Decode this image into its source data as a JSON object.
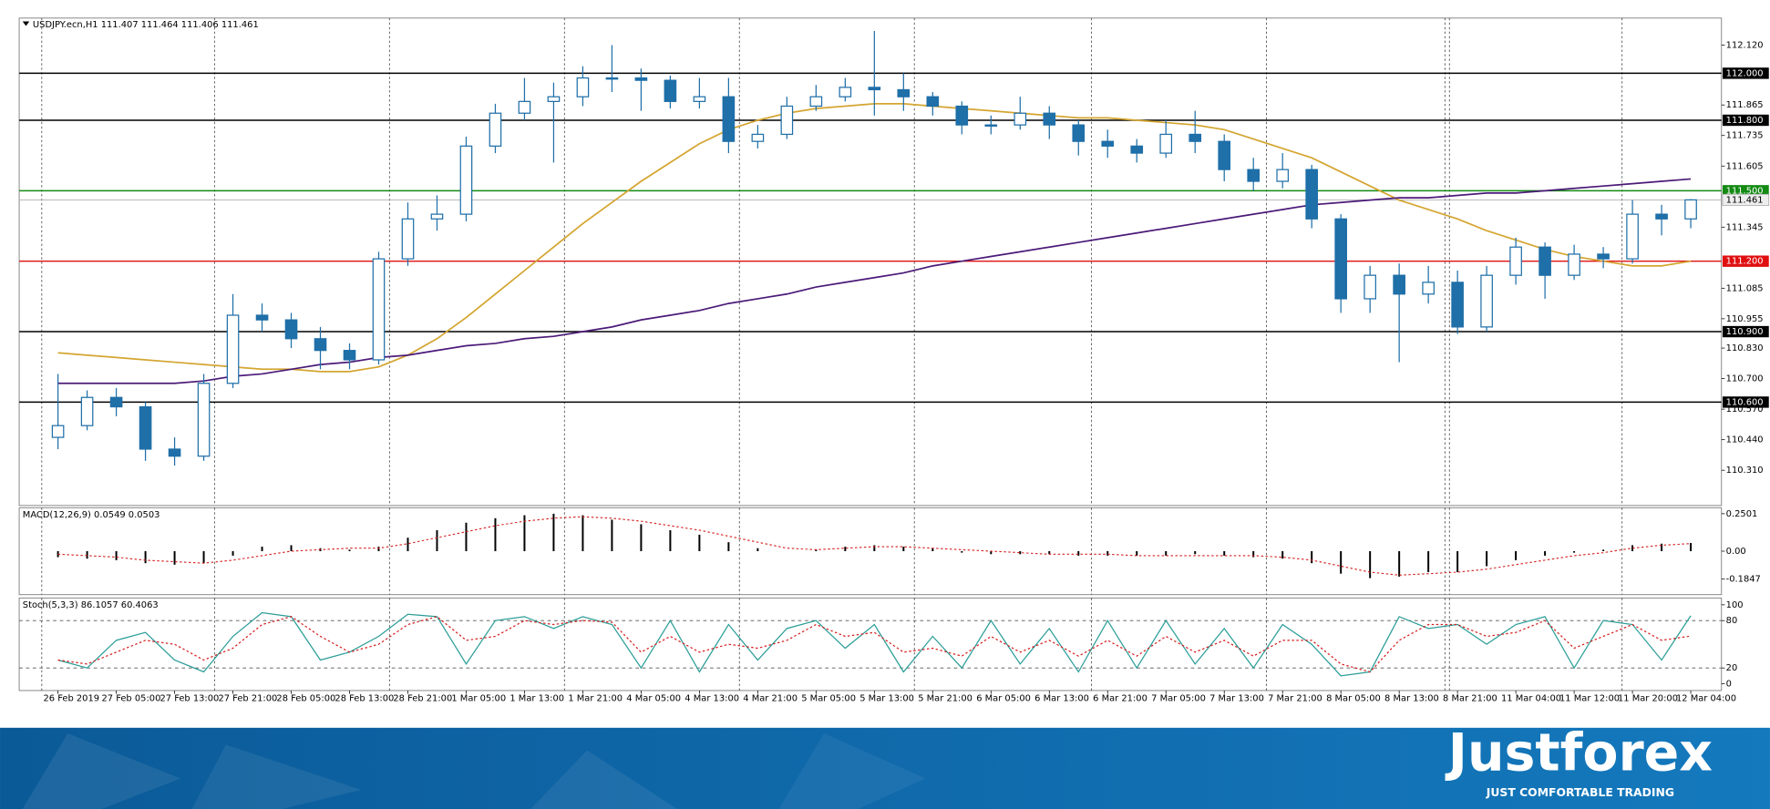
{
  "chart_data": [
    {
      "type": "candlestick",
      "title": "USDJPY.ecn,H1  111.407 111.464 111.406 111.461",
      "categories": [
        "26 Feb 2019",
        null,
        "27 Feb 05:00",
        null,
        "27 Feb 13:00",
        null,
        "27 Feb 21:00",
        null,
        "28 Feb 05:00",
        null,
        "28 Feb 13:00",
        null,
        "28 Feb 21:00",
        null,
        "1 Mar 05:00",
        null,
        "1 Mar 13:00",
        null,
        "1 Mar 21:00",
        null,
        "4 Mar 05:00",
        null,
        "4 Mar 13:00",
        null,
        "4 Mar 21:00",
        null,
        "5 Mar 05:00",
        null,
        "5 Mar 13:00",
        null,
        "5 Mar 21:00",
        null,
        "6 Mar 05:00",
        null,
        "6 Mar 13:00",
        null,
        "6 Mar 21:00",
        null,
        "7 Mar 05:00",
        null,
        "7 Mar 13:00",
        null,
        "7 Mar 21:00",
        null,
        "8 Mar 05:00",
        null,
        "8 Mar 13:00",
        null,
        "8 Mar 21:00",
        null,
        "11 Mar 04:00",
        null,
        "11 Mar 12:00",
        null,
        "11 Mar 20:00",
        null,
        "12 Mar 04:00"
      ],
      "open": [
        110.45,
        110.5,
        110.62,
        110.58,
        110.4,
        110.37,
        110.68,
        110.97,
        110.95,
        110.87,
        110.82,
        110.78,
        111.21,
        111.38,
        111.4,
        111.69,
        111.83,
        111.88,
        111.9,
        111.98,
        111.98,
        111.97,
        111.88,
        111.9,
        111.71,
        111.74,
        111.86,
        111.9,
        111.94,
        111.93,
        111.9,
        111.86,
        111.78,
        111.78,
        111.83,
        111.78,
        111.71,
        111.69,
        111.66,
        111.74,
        111.71,
        111.59,
        111.54,
        111.59,
        111.38,
        111.04,
        111.14,
        111.06,
        111.11,
        110.92,
        111.14,
        111.26,
        111.14,
        111.23,
        111.21,
        111.4,
        111.38
      ],
      "high": [
        110.72,
        110.65,
        110.66,
        110.6,
        110.45,
        110.72,
        111.06,
        111.02,
        110.98,
        110.92,
        110.85,
        111.24,
        111.45,
        111.48,
        111.73,
        111.87,
        111.98,
        111.96,
        112.03,
        112.12,
        112.02,
        111.99,
        111.98,
        111.98,
        111.78,
        111.9,
        111.95,
        111.98,
        112.18,
        112.0,
        111.92,
        111.88,
        111.82,
        111.9,
        111.86,
        111.8,
        111.76,
        111.72,
        111.8,
        111.84,
        111.74,
        111.64,
        111.66,
        111.61,
        111.4,
        111.18,
        111.19,
        111.18,
        111.16,
        111.18,
        111.3,
        111.28,
        111.27,
        111.26,
        111.46,
        111.44,
        111.464
      ],
      "low": [
        110.4,
        110.48,
        110.54,
        110.35,
        110.33,
        110.35,
        110.66,
        110.9,
        110.83,
        110.74,
        110.74,
        110.76,
        111.18,
        111.33,
        111.37,
        111.66,
        111.8,
        111.62,
        111.86,
        111.92,
        111.84,
        111.85,
        111.85,
        111.66,
        111.68,
        111.72,
        111.84,
        111.88,
        111.82,
        111.84,
        111.82,
        111.74,
        111.74,
        111.76,
        111.72,
        111.65,
        111.64,
        111.62,
        111.64,
        111.66,
        111.54,
        111.5,
        111.51,
        111.34,
        110.98,
        110.98,
        110.77,
        111.02,
        110.89,
        110.9,
        111.1,
        111.04,
        111.12,
        111.17,
        111.19,
        111.31,
        111.34
      ],
      "close": [
        110.5,
        110.62,
        110.58,
        110.4,
        110.37,
        110.68,
        110.97,
        110.95,
        110.87,
        110.82,
        110.78,
        111.21,
        111.38,
        111.4,
        111.69,
        111.83,
        111.88,
        111.9,
        111.98,
        111.98,
        111.97,
        111.88,
        111.9,
        111.71,
        111.74,
        111.86,
        111.9,
        111.94,
        111.93,
        111.9,
        111.86,
        111.78,
        111.78,
        111.83,
        111.78,
        111.71,
        111.69,
        111.66,
        111.74,
        111.71,
        111.59,
        111.54,
        111.59,
        111.38,
        111.04,
        111.14,
        111.06,
        111.11,
        110.92,
        111.14,
        111.26,
        111.14,
        111.23,
        111.21,
        111.4,
        111.38,
        111.461
      ],
      "up_color": "#ffffff",
      "down_color": "#1f6fa8",
      "wick_color": "#1f6fa8",
      "lines": [
        {
          "color": "#d4a531",
          "values": [
            110.81,
            110.8,
            110.79,
            110.78,
            110.77,
            110.76,
            110.75,
            110.74,
            110.74,
            110.73,
            110.73,
            110.75,
            110.8,
            110.87,
            110.96,
            111.06,
            111.16,
            111.26,
            111.36,
            111.45,
            111.54,
            111.62,
            111.7,
            111.76,
            111.8,
            111.83,
            111.85,
            111.86,
            111.87,
            111.87,
            111.86,
            111.85,
            111.84,
            111.83,
            111.82,
            111.81,
            111.81,
            111.8,
            111.79,
            111.78,
            111.76,
            111.72,
            111.68,
            111.64,
            111.58,
            111.52,
            111.46,
            111.42,
            111.38,
            111.33,
            111.29,
            111.25,
            111.22,
            111.2,
            111.18,
            111.18,
            111.2
          ]
        },
        {
          "color": "#4b1a78",
          "values": [
            110.68,
            110.68,
            110.68,
            110.68,
            110.68,
            110.69,
            110.71,
            110.72,
            110.74,
            110.76,
            110.77,
            110.79,
            110.8,
            110.82,
            110.84,
            110.85,
            110.87,
            110.88,
            110.9,
            110.92,
            110.95,
            110.97,
            110.99,
            111.02,
            111.04,
            111.06,
            111.09,
            111.11,
            111.13,
            111.15,
            111.18,
            111.2,
            111.22,
            111.24,
            111.26,
            111.28,
            111.3,
            111.32,
            111.34,
            111.36,
            111.38,
            111.4,
            111.42,
            111.44,
            111.45,
            111.46,
            111.47,
            111.47,
            111.48,
            111.49,
            111.49,
            111.5,
            111.51,
            111.52,
            111.53,
            111.54,
            111.55
          ]
        }
      ],
      "levels": [
        {
          "value": 112.0,
          "label": "112.000",
          "color": "#000000"
        },
        {
          "value": 111.8,
          "label": "111.800",
          "color": "#000000"
        },
        {
          "value": 111.5,
          "label": "111.500",
          "color": "#138a13"
        },
        {
          "value": 111.2,
          "label": "111.200",
          "color": "#e01010"
        },
        {
          "value": 110.9,
          "label": "110.900",
          "color": "#000000"
        },
        {
          "value": 110.6,
          "label": "110.600",
          "color": "#000000"
        }
      ],
      "last_price": {
        "value": 111.461,
        "label": "111.461"
      },
      "ylim": [
        110.16,
        112.235
      ],
      "yticks": [
        {
          "value": 112.12,
          "label": "112.120"
        },
        {
          "value": 111.865,
          "label": "111.865"
        },
        {
          "value": 111.735,
          "label": "111.735"
        },
        {
          "value": 111.605,
          "label": "111.605"
        },
        {
          "value": 111.345,
          "label": "111.345"
        },
        {
          "value": 111.085,
          "label": "111.085"
        },
        {
          "value": 110.955,
          "label": "110.955"
        },
        {
          "value": 110.83,
          "label": "110.830"
        },
        {
          "value": 110.7,
          "label": "110.700"
        },
        {
          "value": 110.57,
          "label": "110.570"
        },
        {
          "value": 110.44,
          "label": "110.440"
        },
        {
          "value": 110.31,
          "label": "110.310"
        }
      ]
    },
    {
      "type": "macd",
      "title": "MACD(12,26,9) 0.0549 0.0503",
      "color": "#000000",
      "values": [
        -0.04,
        -0.05,
        -0.06,
        -0.08,
        -0.09,
        -0.08,
        -0.03,
        0.03,
        0.04,
        0.02,
        0.01,
        0.03,
        0.09,
        0.14,
        0.19,
        0.22,
        0.24,
        0.25,
        0.24,
        0.21,
        0.18,
        0.14,
        0.11,
        0.06,
        0.02,
        0.0,
        0.01,
        0.03,
        0.04,
        0.03,
        0.02,
        -0.01,
        -0.02,
        -0.02,
        -0.02,
        -0.03,
        -0.03,
        -0.03,
        -0.03,
        -0.02,
        -0.03,
        -0.04,
        -0.05,
        -0.08,
        -0.15,
        -0.18,
        -0.17,
        -0.14,
        -0.14,
        -0.1,
        -0.06,
        -0.03,
        -0.01,
        0.01,
        0.04,
        0.05,
        0.0549
      ],
      "signal": {
        "color": "#d62020",
        "values": [
          -0.02,
          -0.03,
          -0.04,
          -0.06,
          -0.07,
          -0.08,
          -0.06,
          -0.03,
          0.0,
          0.01,
          0.02,
          0.02,
          0.05,
          0.09,
          0.13,
          0.17,
          0.2,
          0.22,
          0.23,
          0.22,
          0.2,
          0.17,
          0.14,
          0.1,
          0.06,
          0.02,
          0.01,
          0.02,
          0.03,
          0.03,
          0.02,
          0.01,
          0.0,
          -0.01,
          -0.02,
          -0.02,
          -0.02,
          -0.03,
          -0.03,
          -0.03,
          -0.03,
          -0.03,
          -0.04,
          -0.06,
          -0.1,
          -0.14,
          -0.16,
          -0.15,
          -0.14,
          -0.12,
          -0.09,
          -0.06,
          -0.03,
          -0.01,
          0.02,
          0.04,
          0.0503
        ]
      },
      "ylim": [
        -0.29,
        0.29
      ],
      "yticks": [
        0.2501,
        {
          "value": 0,
          "label": "0.00"
        },
        -0.1847
      ]
    },
    {
      "type": "stochastic",
      "title": "Stoch(5,3,3) 86.1057 60.4063",
      "series": [
        {
          "color": "#2a9d98",
          "dash": false,
          "values": [
            30,
            20,
            55,
            65,
            30,
            15,
            60,
            90,
            85,
            30,
            40,
            60,
            88,
            85,
            25,
            80,
            85,
            70,
            85,
            75,
            20,
            80,
            15,
            75,
            30,
            70,
            80,
            45,
            75,
            15,
            60,
            20,
            80,
            25,
            70,
            15,
            80,
            20,
            80,
            25,
            70,
            20,
            75,
            50,
            10,
            15,
            85,
            70,
            75,
            50,
            75,
            85,
            20,
            80,
            75,
            30,
            86.1057
          ]
        },
        {
          "color": "#d62020",
          "dash": true,
          "values": [
            30,
            25,
            40,
            55,
            50,
            30,
            45,
            75,
            85,
            60,
            40,
            50,
            75,
            85,
            55,
            60,
            80,
            75,
            80,
            78,
            40,
            60,
            40,
            50,
            45,
            55,
            75,
            60,
            65,
            40,
            45,
            35,
            60,
            40,
            55,
            35,
            55,
            35,
            60,
            40,
            55,
            35,
            55,
            55,
            25,
            15,
            55,
            75,
            75,
            60,
            65,
            80,
            45,
            60,
            75,
            55,
            60.4063
          ]
        }
      ],
      "levels": [
        80,
        20
      ],
      "ylim": [
        -8.6,
        108.6
      ],
      "yticks": [
        100,
        80,
        20,
        0
      ]
    }
  ],
  "branding": {
    "logo": "Justforex",
    "tagline": "JUST COMFORTABLE TRADING"
  }
}
